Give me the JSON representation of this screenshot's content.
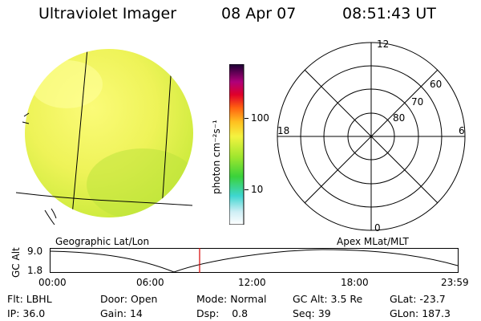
{
  "header": {
    "instrument": "Ultraviolet Imager",
    "date": "08 Apr 07",
    "time": "08:51:43 UT"
  },
  "colorbar": {
    "unit_label": "photon cm⁻²s⁻¹",
    "ticks": [
      "100",
      "10"
    ]
  },
  "polar_plot": {
    "mlt_labels": {
      "top": "12",
      "left": "18",
      "right": "6",
      "bottom": "0"
    },
    "lat_labels": [
      "60",
      "70",
      "80"
    ]
  },
  "left_caption": "Geographic Lat/Lon",
  "right_caption": "Apex MLat/MLT",
  "altitude_plot": {
    "ylabel": "GC Alt",
    "yticks": [
      "9.0",
      "1.8"
    ],
    "xticks": [
      "00:00",
      "06:00",
      "12:00",
      "18:00",
      "23:59"
    ],
    "marker_time": "08:51"
  },
  "info": {
    "row1": [
      {
        "label": "Flt:",
        "value": "LBHL"
      },
      {
        "label": "Door:",
        "value": "Open"
      },
      {
        "label": "Mode:",
        "value": "Normal"
      },
      {
        "label": "GC Alt:",
        "value": "3.5 Re"
      },
      {
        "label": "GLat:",
        "value": "-23.7"
      }
    ],
    "row2": [
      {
        "label": "IP:",
        "value": "36.0"
      },
      {
        "label": "Gain:",
        "value": "14"
      },
      {
        "label": "Dsp:",
        "value": "0.8"
      },
      {
        "label": "Seq:",
        "value": "39"
      },
      {
        "label": "GLon:",
        "value": "187.3"
      }
    ]
  },
  "colors": {
    "earth_disk": "#e8f24a",
    "accent_marker": "#d40000"
  }
}
